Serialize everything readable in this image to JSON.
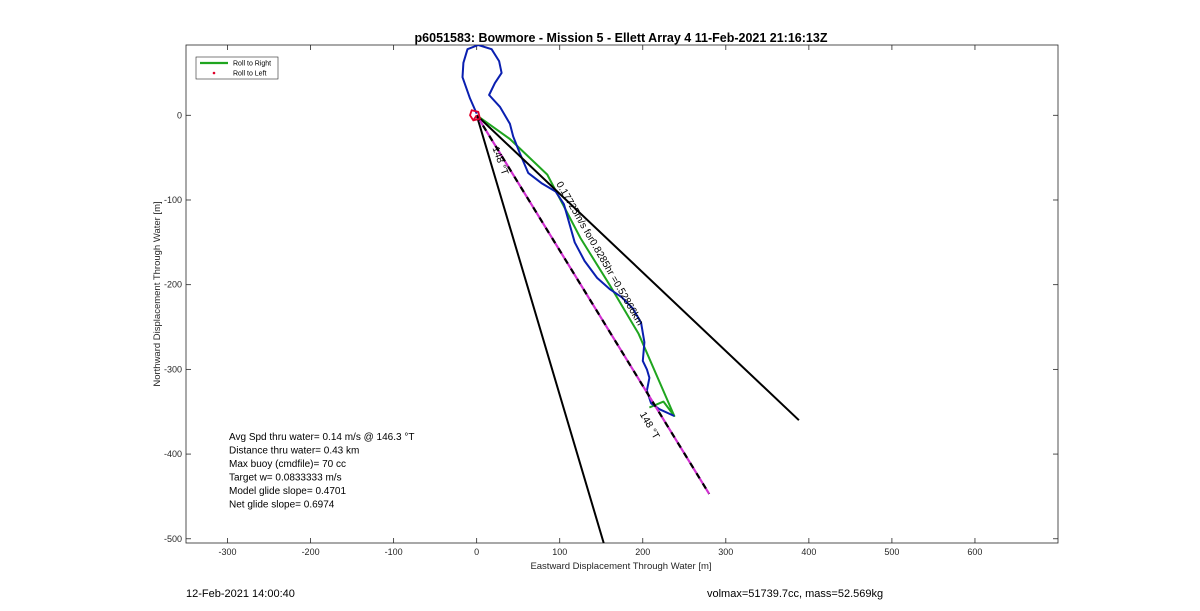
{
  "chart_data": {
    "type": "line",
    "title": "p6051583: Bowmore - Mission 5 - Ellett Array 4 11-Feb-2021 21:16:13Z",
    "xlabel": "Eastward Displacement Through Water [m]",
    "ylabel": "Northward Displacement Through Water [m]",
    "xlim": [
      -350,
      700
    ],
    "ylim": [
      -505,
      83
    ],
    "xticks": [
      -300,
      -200,
      -100,
      0,
      100,
      200,
      300,
      400,
      500,
      600
    ],
    "yticks": [
      -500,
      -400,
      -300,
      -200,
      -100,
      0
    ],
    "grid": false,
    "legend_position": "top-left",
    "legend": [
      {
        "label": "Roll to Right",
        "color": "#1fa51f",
        "style": "line"
      },
      {
        "label": "Roll to Left",
        "color": "#e0002a",
        "style": "marker"
      }
    ],
    "series": [
      {
        "name": "Roll to Right",
        "color": "#1fa51f",
        "x": [
          0,
          40,
          85,
          125,
          160,
          195,
          238,
          225,
          208
        ],
        "y": [
          0,
          -28,
          -70,
          -145,
          -200,
          -258,
          -355,
          -338,
          -345
        ]
      },
      {
        "color": "#0a1fb0",
        "x": [
          0,
          -8,
          -17,
          -16,
          -11,
          2,
          18,
          27,
          30,
          22,
          15,
          28,
          40,
          44,
          52,
          62,
          78,
          95,
          105,
          118,
          130,
          145,
          160,
          175,
          188,
          198,
          202,
          200,
          205,
          208,
          205,
          210,
          220,
          238
        ],
        "y": [
          2,
          20,
          45,
          62,
          78,
          83,
          78,
          64,
          50,
          38,
          24,
          10,
          -10,
          -25,
          -45,
          -68,
          -80,
          -90,
          -105,
          -150,
          -172,
          -192,
          -205,
          -215,
          -228,
          -245,
          -268,
          -290,
          -300,
          -310,
          -325,
          -340,
          -347,
          -355
        ]
      },
      {
        "color": "#000000",
        "x": [
          0,
          388
        ],
        "y": [
          0,
          -360
        ]
      },
      {
        "color": "#000000",
        "x": [
          0,
          153
        ],
        "y": [
          0,
          -505
        ]
      },
      {
        "color": "#d030d0",
        "dashed_black": true,
        "x": [
          0,
          280
        ],
        "y": [
          0,
          -447
        ]
      },
      {
        "color": "#e0002a",
        "circle": true,
        "x": [
          -4,
          4,
          2,
          -6,
          -8,
          -4,
          0
        ],
        "y": [
          -6,
          -4,
          4,
          6,
          0,
          -6,
          0
        ]
      }
    ],
    "annotations": [
      {
        "text": "148 °T",
        "x": 25,
        "y": -55,
        "angle": 70
      },
      {
        "text": "0.17725m/s for0.8285hr =0.52866km",
        "x": 145,
        "y": -165,
        "angle": 60
      },
      {
        "text": "148 °T",
        "x": 205,
        "y": -368,
        "angle": 60
      }
    ],
    "stats": [
      "Avg Spd thru water=  0.14 m/s @ 146.3 °T",
      "Distance thru water=  0.43 km",
      "Max buoy (cmdfile)= 70 cc",
      "Target w= 0.0833333 m/s",
      "Model glide slope= 0.4701",
      "Net glide slope= 0.6974"
    ]
  },
  "footer": {
    "date": "12-Feb-2021 14:00:40",
    "vol_mass": "volmax=51739.7cc, mass=52.569kg"
  }
}
